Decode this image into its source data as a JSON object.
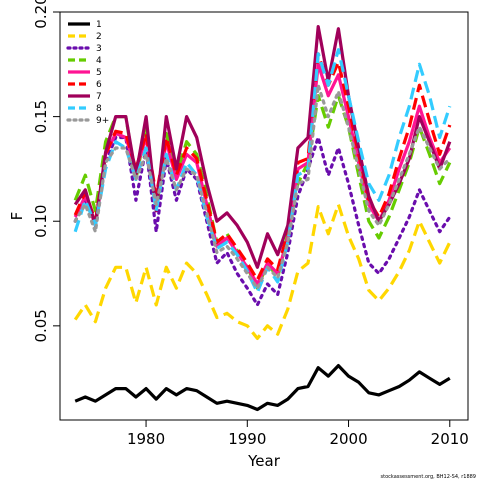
{
  "chart_data": {
    "type": "line",
    "xlabel": "Year",
    "ylabel": "F",
    "xlim": [
      1971.5,
      2011.8
    ],
    "ylim": [
      0.005,
      0.2
    ],
    "x_ticks": [
      "1980",
      "1990",
      "2000",
      "2010"
    ],
    "y_ticks": [
      "0.05",
      "0.10",
      "0.15",
      "0.20"
    ],
    "legend_position": "top-left",
    "x": [
      1973,
      1974,
      1975,
      1976,
      1977,
      1978,
      1979,
      1980,
      1981,
      1982,
      1983,
      1984,
      1985,
      1986,
      1987,
      1988,
      1989,
      1990,
      1991,
      1992,
      1993,
      1994,
      1995,
      1996,
      1997,
      1998,
      1999,
      2000,
      2001,
      2002,
      2003,
      2004,
      2005,
      2006,
      2007,
      2008,
      2009,
      2010
    ],
    "series": [
      {
        "name": "1",
        "color": "#000000",
        "dash": "solid",
        "values": [
          0.014,
          0.016,
          0.014,
          0.017,
          0.02,
          0.02,
          0.016,
          0.02,
          0.015,
          0.02,
          0.017,
          0.02,
          0.019,
          0.016,
          0.013,
          0.014,
          0.013,
          0.012,
          0.01,
          0.013,
          0.012,
          0.015,
          0.02,
          0.021,
          0.03,
          0.026,
          0.031,
          0.026,
          0.023,
          0.018,
          0.017,
          0.019,
          0.021,
          0.024,
          0.028,
          0.025,
          0.022,
          0.025
        ]
      },
      {
        "name": "2",
        "color": "#FFD700",
        "dash": "long",
        "values": [
          0.053,
          0.06,
          0.052,
          0.068,
          0.078,
          0.078,
          0.061,
          0.078,
          0.06,
          0.078,
          0.068,
          0.08,
          0.075,
          0.065,
          0.054,
          0.056,
          0.052,
          0.05,
          0.044,
          0.05,
          0.046,
          0.058,
          0.076,
          0.08,
          0.107,
          0.094,
          0.108,
          0.093,
          0.082,
          0.067,
          0.062,
          0.068,
          0.076,
          0.086,
          0.1,
          0.09,
          0.08,
          0.09
        ]
      },
      {
        "name": "3",
        "color": "#6A0DAD",
        "dash": "dot",
        "values": [
          0.1,
          0.11,
          0.097,
          0.128,
          0.14,
          0.14,
          0.11,
          0.135,
          0.095,
          0.13,
          0.11,
          0.125,
          0.12,
          0.1,
          0.08,
          0.085,
          0.075,
          0.068,
          0.06,
          0.07,
          0.065,
          0.085,
          0.112,
          0.125,
          0.14,
          0.122,
          0.135,
          0.118,
          0.098,
          0.08,
          0.075,
          0.082,
          0.092,
          0.102,
          0.115,
          0.105,
          0.095,
          0.102
        ]
      },
      {
        "name": "4",
        "color": "#66CC00",
        "dash": "long",
        "values": [
          0.11,
          0.122,
          0.105,
          0.138,
          0.15,
          0.15,
          0.12,
          0.145,
          0.105,
          0.142,
          0.122,
          0.138,
          0.132,
          0.112,
          0.09,
          0.094,
          0.086,
          0.078,
          0.068,
          0.08,
          0.073,
          0.094,
          0.118,
          0.128,
          0.16,
          0.145,
          0.16,
          0.145,
          0.122,
          0.1,
          0.092,
          0.102,
          0.115,
          0.128,
          0.145,
          0.132,
          0.118,
          0.128
        ]
      },
      {
        "name": "5",
        "color": "#FF1493",
        "dash": "solid",
        "values": [
          0.102,
          0.112,
          0.098,
          0.132,
          0.142,
          0.14,
          0.125,
          0.14,
          0.11,
          0.138,
          0.12,
          0.132,
          0.128,
          0.108,
          0.088,
          0.092,
          0.085,
          0.078,
          0.07,
          0.08,
          0.075,
          0.092,
          0.125,
          0.128,
          0.175,
          0.16,
          0.17,
          0.15,
          0.128,
          0.108,
          0.1,
          0.11,
          0.125,
          0.138,
          0.155,
          0.14,
          0.128,
          0.135
        ]
      },
      {
        "name": "6",
        "color": "#FF0000",
        "dash": "long",
        "values": [
          0.103,
          0.114,
          0.1,
          0.132,
          0.143,
          0.142,
          0.125,
          0.142,
          0.112,
          0.14,
          0.122,
          0.135,
          0.13,
          0.11,
          0.09,
          0.094,
          0.087,
          0.08,
          0.072,
          0.082,
          0.077,
          0.095,
          0.128,
          0.13,
          0.18,
          0.165,
          0.176,
          0.155,
          0.132,
          0.11,
          0.102,
          0.113,
          0.13,
          0.145,
          0.165,
          0.148,
          0.132,
          0.146
        ]
      },
      {
        "name": "7",
        "color": "#A0005A",
        "dash": "solid",
        "values": [
          0.108,
          0.115,
          0.098,
          0.133,
          0.15,
          0.15,
          0.122,
          0.15,
          0.105,
          0.15,
          0.125,
          0.15,
          0.14,
          0.118,
          0.1,
          0.104,
          0.098,
          0.09,
          0.078,
          0.094,
          0.084,
          0.098,
          0.135,
          0.14,
          0.193,
          0.167,
          0.192,
          0.16,
          0.135,
          0.112,
          0.1,
          0.108,
          0.118,
          0.13,
          0.15,
          0.138,
          0.125,
          0.138
        ]
      },
      {
        "name": "8",
        "color": "#33CCFF",
        "dash": "long",
        "values": [
          0.095,
          0.11,
          0.098,
          0.125,
          0.138,
          0.135,
          0.12,
          0.135,
          0.105,
          0.132,
          0.115,
          0.128,
          0.122,
          0.102,
          0.087,
          0.09,
          0.084,
          0.076,
          0.066,
          0.078,
          0.071,
          0.09,
          0.122,
          0.125,
          0.18,
          0.165,
          0.182,
          0.16,
          0.138,
          0.118,
          0.11,
          0.122,
          0.14,
          0.155,
          0.175,
          0.16,
          0.14,
          0.155
        ]
      },
      {
        "name": "9+",
        "color": "#999999",
        "dash": "dot",
        "values": [
          0.1,
          0.108,
          0.095,
          0.128,
          0.135,
          0.135,
          0.12,
          0.132,
          0.108,
          0.13,
          0.115,
          0.125,
          0.122,
          0.104,
          0.085,
          0.088,
          0.082,
          0.075,
          0.068,
          0.078,
          0.073,
          0.09,
          0.118,
          0.12,
          0.165,
          0.15,
          0.162,
          0.145,
          0.125,
          0.105,
          0.098,
          0.108,
          0.12,
          0.132,
          0.145,
          0.135,
          0.125,
          0.13
        ]
      }
    ]
  },
  "footer_text": "stockassessment.org, BH12-S4, r1889"
}
